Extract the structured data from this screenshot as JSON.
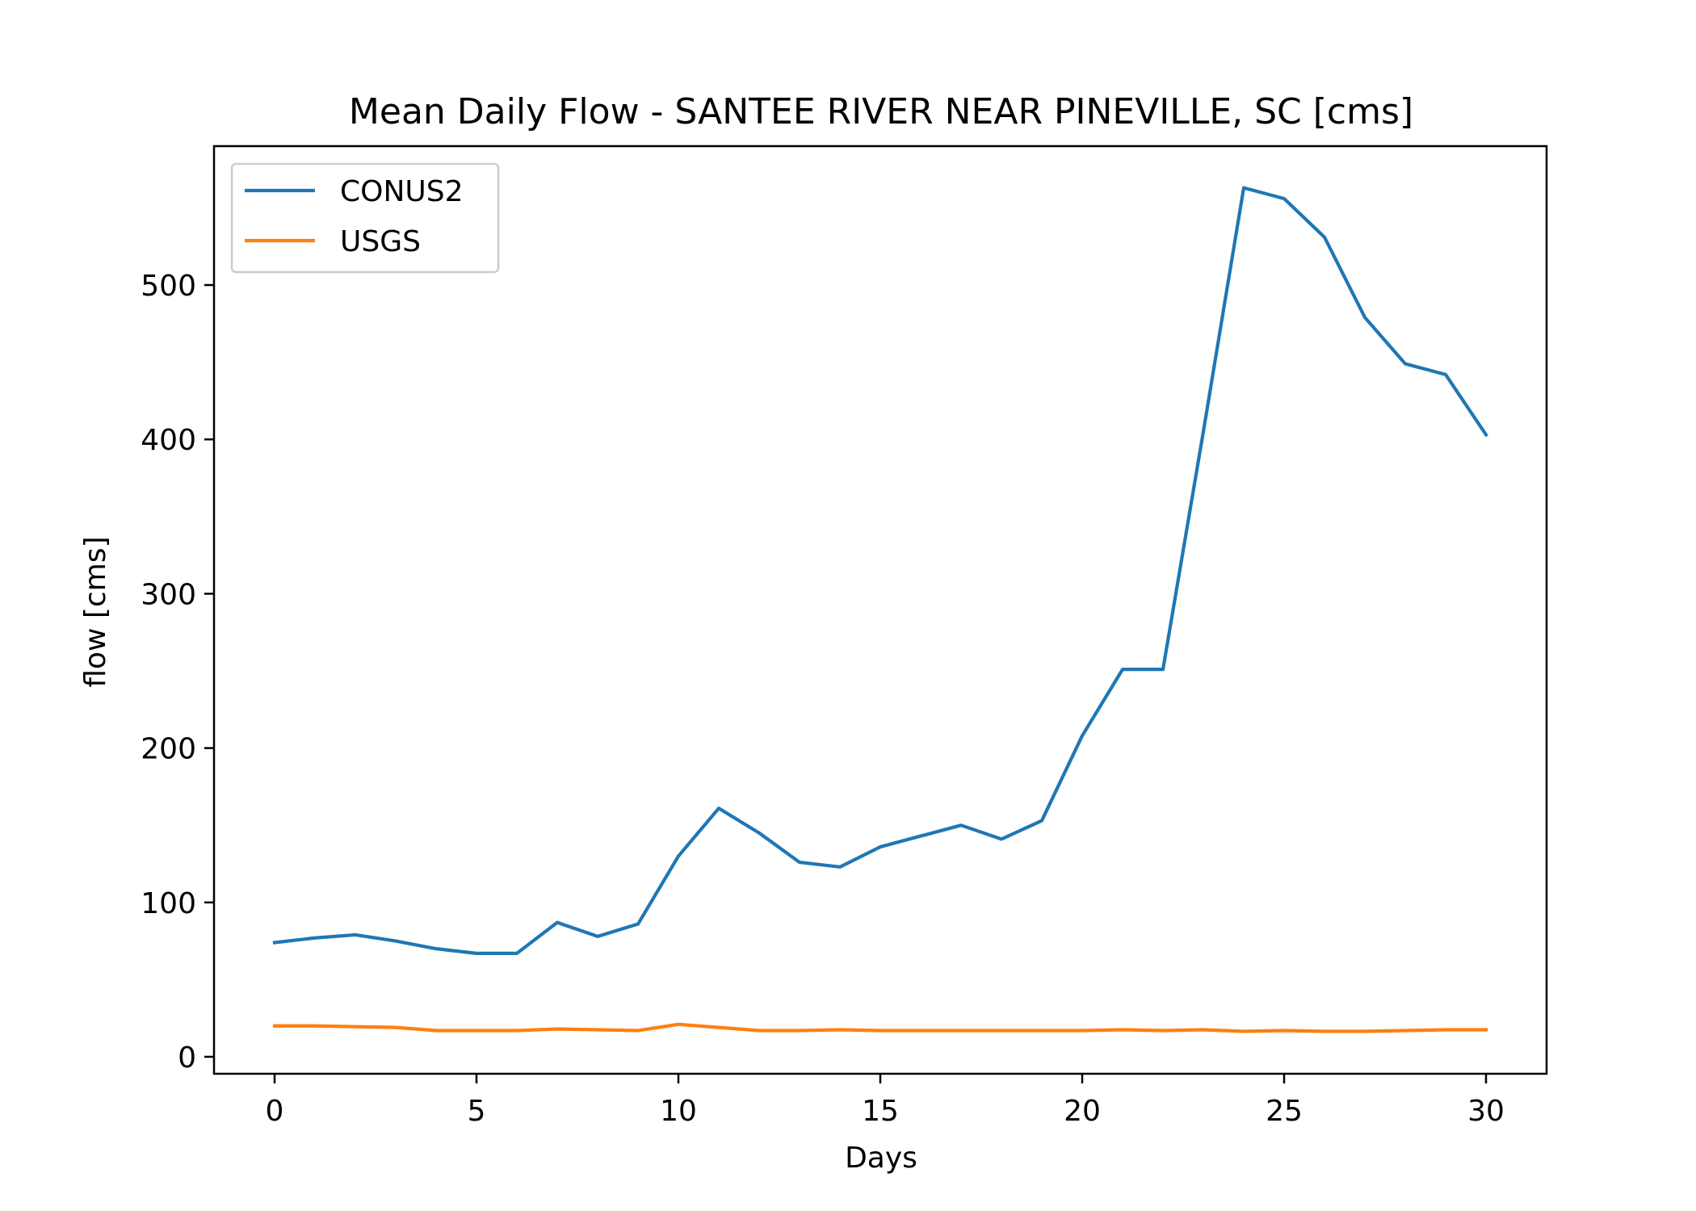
{
  "chart_data": {
    "type": "line",
    "title": "Mean Daily Flow - SANTEE RIVER NEAR PINEVILLE, SC [cms]",
    "xlabel": "Days",
    "ylabel": "flow [cms]",
    "xlim": [
      -1.5,
      31.5
    ],
    "ylim": [
      -11,
      590
    ],
    "xticks": [
      0,
      5,
      10,
      15,
      20,
      25,
      30
    ],
    "yticks": [
      0,
      100,
      200,
      300,
      400,
      500
    ],
    "grid": false,
    "legend_position": "upper-left",
    "x": [
      0,
      1,
      2,
      3,
      4,
      5,
      6,
      7,
      8,
      9,
      10,
      11,
      12,
      13,
      14,
      15,
      16,
      17,
      18,
      19,
      20,
      21,
      22,
      23,
      24,
      25,
      26,
      27,
      28,
      29,
      30
    ],
    "series": [
      {
        "name": "CONUS2",
        "color": "#1f77b4",
        "values": [
          74,
          77,
          79,
          75,
          70,
          67,
          67,
          87,
          78,
          86,
          130,
          161,
          145,
          126,
          123,
          136,
          143,
          150,
          141,
          153,
          208,
          251,
          251,
          405,
          563,
          556,
          531,
          479,
          449,
          442,
          403
        ]
      },
      {
        "name": "USGS",
        "color": "#ff7f0e",
        "values": [
          20,
          20,
          19.5,
          19,
          17,
          17,
          17,
          18,
          17.5,
          17,
          21,
          19,
          17,
          17,
          17.5,
          17,
          17,
          17,
          17,
          17,
          17,
          17.5,
          17,
          17.5,
          16.5,
          17,
          16.5,
          16.5,
          17,
          17.5,
          17.5
        ]
      }
    ]
  }
}
